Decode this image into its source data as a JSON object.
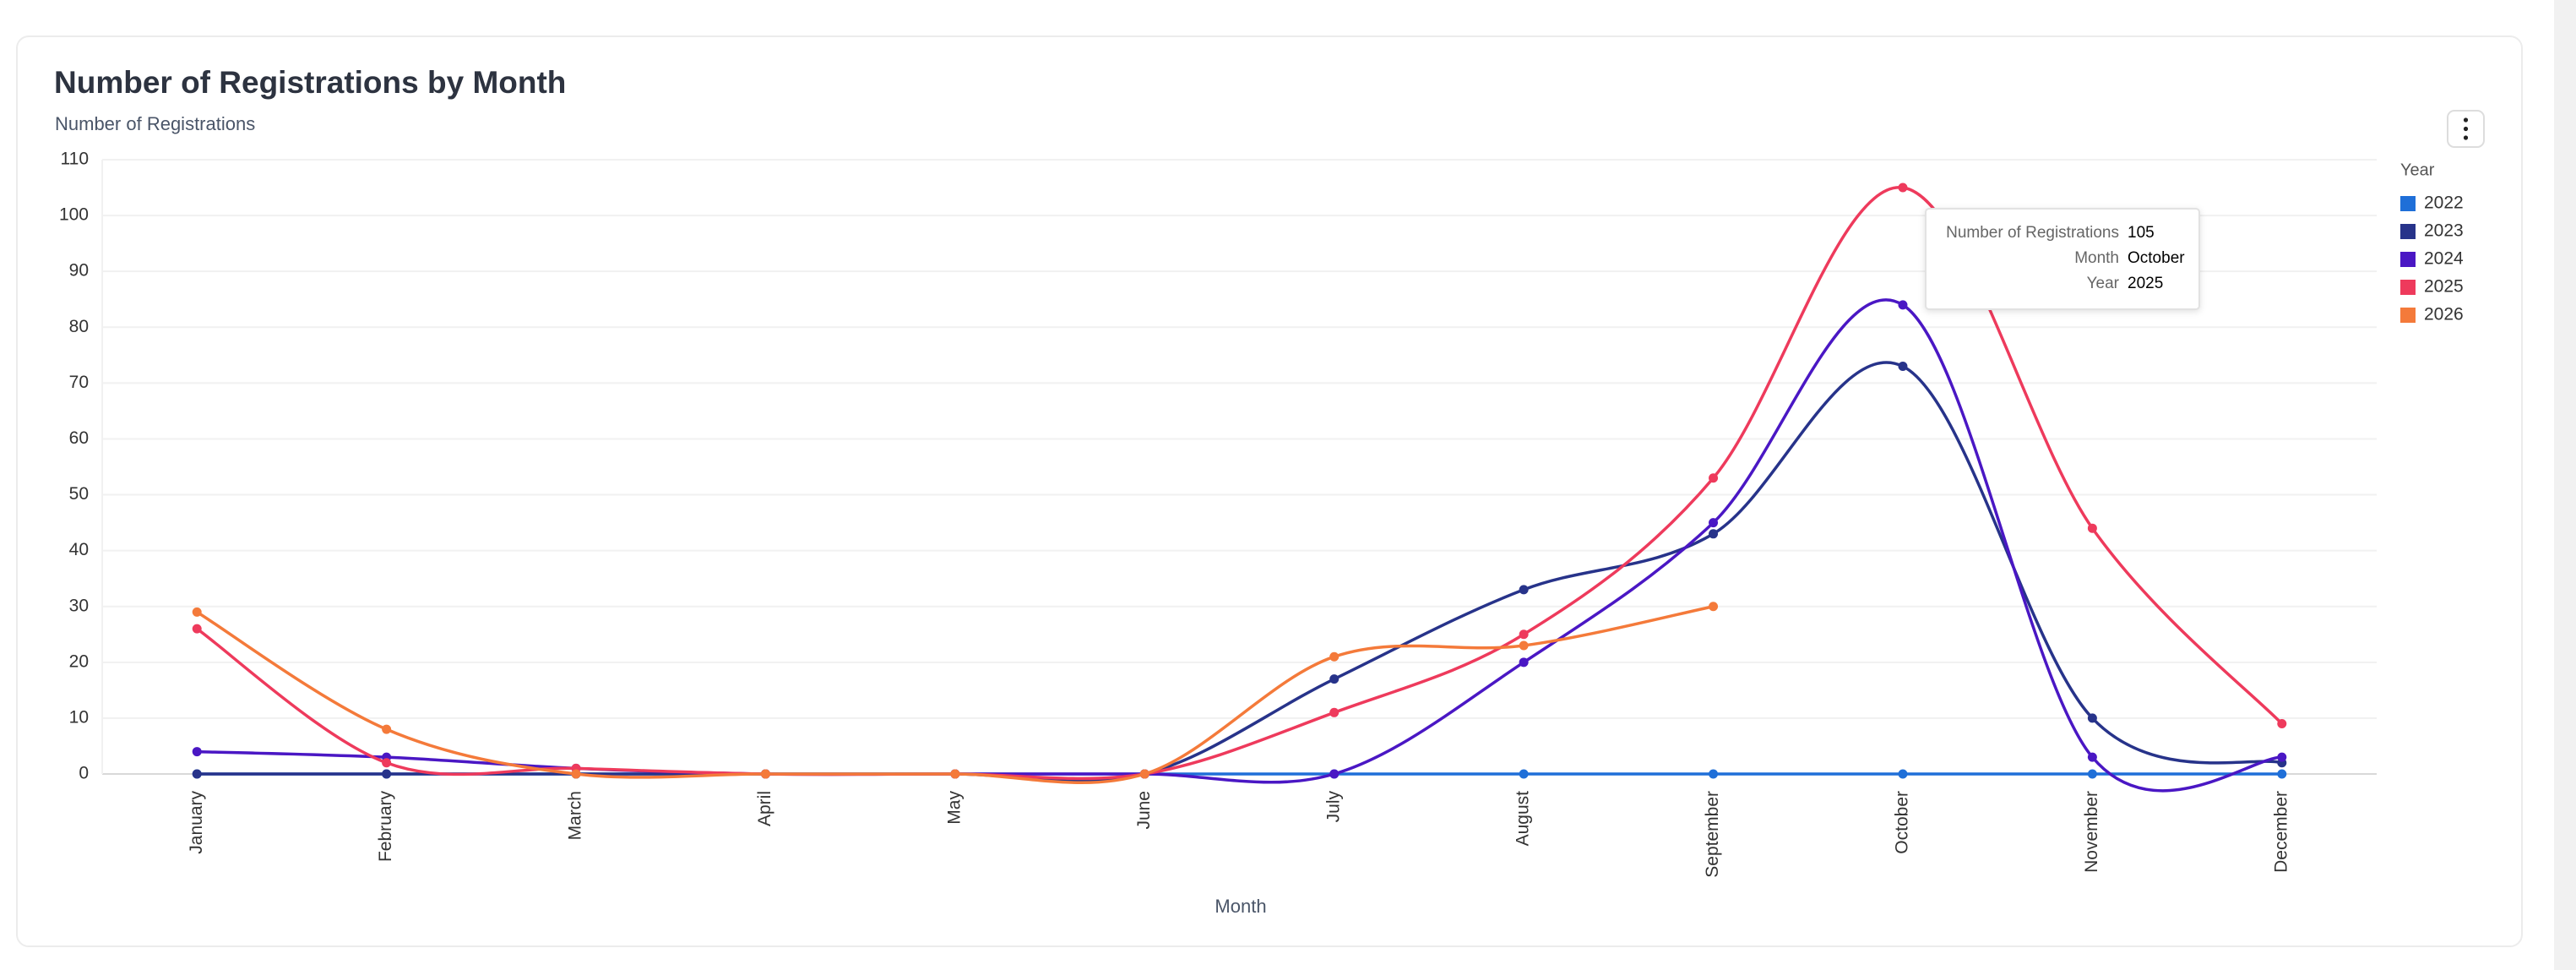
{
  "chart_data": {
    "type": "line",
    "title": "Number of Registrations by Month",
    "y_label": "Number of Registrations",
    "x_label": "Month",
    "categories": [
      "January",
      "February",
      "March",
      "April",
      "May",
      "June",
      "July",
      "August",
      "September",
      "October",
      "November",
      "December"
    ],
    "legend_title": "Year",
    "legend_position": "right",
    "grid": true,
    "smooth": true,
    "ylim": [
      0,
      110
    ],
    "yticks": [
      0,
      10,
      20,
      30,
      40,
      50,
      60,
      70,
      80,
      90,
      100,
      110
    ],
    "series": [
      {
        "name": "2022",
        "color": "#1f6fd8",
        "values": [
          0,
          0,
          0,
          0,
          0,
          0,
          0,
          0,
          0,
          0,
          0,
          0
        ]
      },
      {
        "name": "2023",
        "color": "#27338a",
        "values": [
          0,
          0,
          0,
          0,
          0,
          0,
          17,
          33,
          43,
          73,
          10,
          2
        ]
      },
      {
        "name": "2024",
        "color": "#4a17c4",
        "values": [
          4,
          3,
          1,
          0,
          0,
          0,
          0,
          20,
          45,
          84,
          3,
          3
        ]
      },
      {
        "name": "2025",
        "color": "#ee3a5c",
        "values": [
          26,
          2,
          1,
          0,
          0,
          0,
          11,
          25,
          53,
          105,
          44,
          9
        ]
      },
      {
        "name": "2026",
        "color": "#f47a3a",
        "values": [
          29,
          8,
          0,
          0,
          0,
          0,
          21,
          23,
          30,
          null,
          null,
          null
        ]
      }
    ],
    "tooltip": {
      "rows": [
        {
          "label": "Number of Registrations",
          "value": "105"
        },
        {
          "label": "Month",
          "value": "October"
        },
        {
          "label": "Year",
          "value": "2025"
        }
      ]
    }
  }
}
